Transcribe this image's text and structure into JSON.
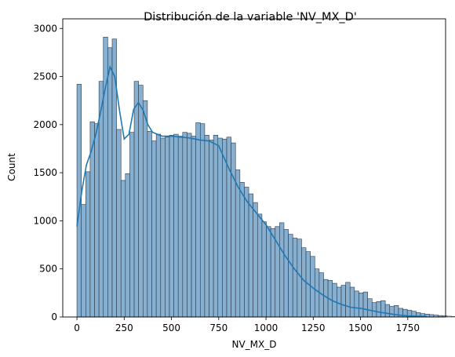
{
  "chart_data": {
    "type": "bar",
    "title": "Distribución de la variable 'NV_MX_D'",
    "xlabel": "NV_MX_D",
    "ylabel": "Count",
    "xlim": [
      -75,
      1950
    ],
    "ylim": [
      0,
      3100
    ],
    "x_ticks": [
      0,
      250,
      500,
      750,
      1000,
      1250,
      1500,
      1750
    ],
    "y_ticks": [
      0,
      500,
      1000,
      1500,
      2000,
      2500,
      3000
    ],
    "grid": false,
    "bin_start": 0,
    "bin_width": 23.3,
    "counts": [
      2420,
      1170,
      1510,
      2030,
      2010,
      2450,
      2910,
      2800,
      2890,
      1950,
      1420,
      1490,
      1920,
      2450,
      2410,
      2250,
      1930,
      1830,
      1900,
      1860,
      1870,
      1890,
      1900,
      1880,
      1920,
      1910,
      1880,
      2020,
      2010,
      1890,
      1840,
      1890,
      1860,
      1850,
      1870,
      1810,
      1530,
      1400,
      1350,
      1280,
      1190,
      1070,
      990,
      940,
      920,
      940,
      980,
      910,
      860,
      820,
      810,
      720,
      680,
      630,
      500,
      460,
      390,
      380,
      350,
      310,
      330,
      360,
      310,
      270,
      250,
      260,
      190,
      150,
      160,
      170,
      130,
      110,
      120,
      90,
      80,
      70,
      60,
      45,
      35,
      30,
      25,
      20,
      15,
      12,
      8,
      6,
      4,
      3,
      2,
      1
    ],
    "kde": {
      "color": "#1f77b4",
      "x": [
        0,
        25,
        50,
        75,
        100,
        125,
        150,
        175,
        200,
        225,
        250,
        275,
        300,
        325,
        350,
        375,
        400,
        450,
        500,
        550,
        600,
        650,
        700,
        750,
        800,
        850,
        900,
        950,
        1000,
        1050,
        1100,
        1150,
        1200,
        1250,
        1300,
        1350,
        1400,
        1450,
        1500,
        1550,
        1600,
        1650,
        1700,
        1750,
        1800,
        1850
      ],
      "y": [
        940,
        1300,
        1580,
        1720,
        1900,
        2130,
        2380,
        2600,
        2500,
        2150,
        1850,
        1900,
        2160,
        2230,
        2150,
        2000,
        1920,
        1880,
        1880,
        1870,
        1860,
        1840,
        1830,
        1780,
        1560,
        1360,
        1200,
        1080,
        960,
        800,
        640,
        500,
        380,
        300,
        230,
        170,
        130,
        100,
        90,
        70,
        50,
        35,
        20,
        12,
        8,
        5
      ]
    },
    "bar_fill": "#86afd0",
    "bar_edge": "#2b3a48"
  }
}
